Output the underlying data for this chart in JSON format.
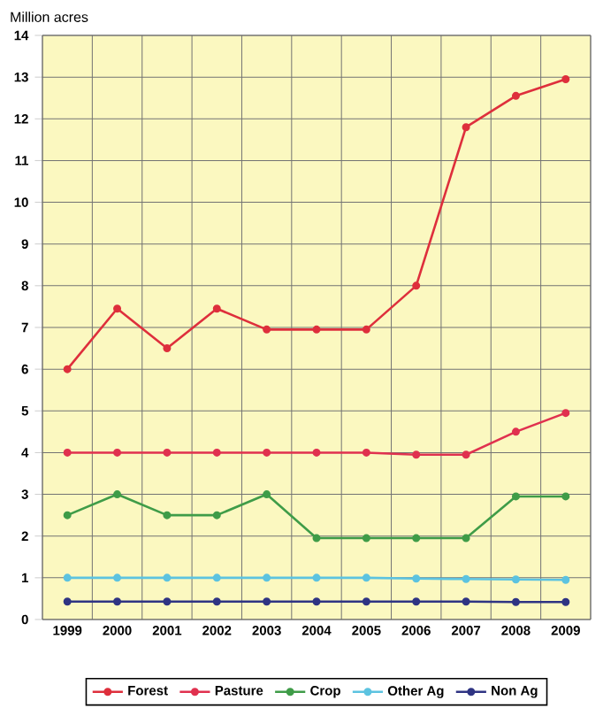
{
  "chart_data": {
    "type": "line",
    "ylabel": "Million acres",
    "categories": [
      "1999",
      "2000",
      "2001",
      "2002",
      "2003",
      "2004",
      "2005",
      "2006",
      "2007",
      "2008",
      "2009"
    ],
    "series": [
      {
        "name": "Forest",
        "color": "#de2f3c",
        "values": [
          6.0,
          7.45,
          6.5,
          7.45,
          6.95,
          6.95,
          6.95,
          8.0,
          11.8,
          12.55,
          12.95
        ]
      },
      {
        "name": "Pasture",
        "color": "#e0314f",
        "values": [
          4.0,
          4.0,
          4.0,
          4.0,
          4.0,
          4.0,
          4.0,
          3.95,
          3.95,
          4.5,
          4.95
        ]
      },
      {
        "name": "Crop",
        "color": "#3f9c48",
        "values": [
          2.5,
          3.0,
          2.5,
          2.5,
          3.0,
          1.95,
          1.95,
          1.95,
          1.95,
          2.95,
          2.95
        ]
      },
      {
        "name": "Other Ag",
        "color": "#5cc3e0",
        "values": [
          1.0,
          1.0,
          1.0,
          1.0,
          1.0,
          1.0,
          1.0,
          0.98,
          0.97,
          0.96,
          0.95
        ]
      },
      {
        "name": "Non Ag",
        "color": "#2f3483",
        "values": [
          0.43,
          0.43,
          0.43,
          0.43,
          0.43,
          0.43,
          0.43,
          0.43,
          0.43,
          0.42,
          0.42
        ]
      }
    ],
    "ylim": [
      0,
      14
    ],
    "yticks": [
      0,
      1,
      2,
      3,
      4,
      5,
      6,
      7,
      8,
      9,
      10,
      11,
      12,
      13,
      14
    ],
    "grid": true,
    "legend": "bottom",
    "marker": "circle",
    "line_style": "solid"
  }
}
